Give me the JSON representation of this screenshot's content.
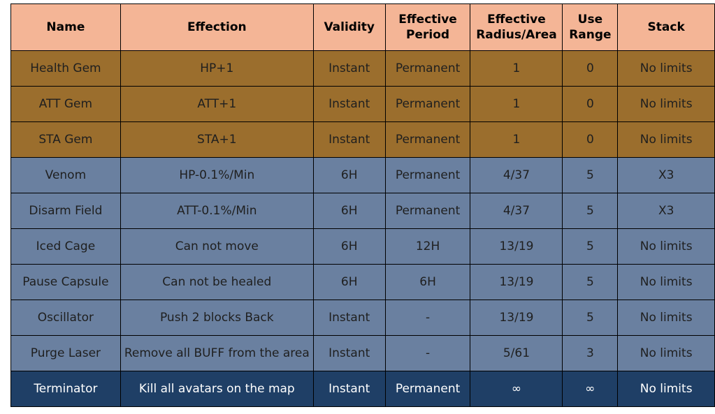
{
  "colors": {
    "header": "#f4b596",
    "gem": "#9b6e2d",
    "debuff": "#6a80a0",
    "ultimate": "#1f3f66"
  },
  "table": {
    "headers": [
      "Name",
      "Effection",
      "Validity",
      "Effective Period",
      "Effective Radius/Area",
      "Use Range",
      "Stack"
    ],
    "rows": [
      {
        "group": "gem",
        "cells": [
          "Health Gem",
          "HP+1",
          "Instant",
          "Permanent",
          "1",
          "0",
          "No limits"
        ]
      },
      {
        "group": "gem",
        "cells": [
          "ATT Gem",
          "ATT+1",
          "Instant",
          "Permanent",
          "1",
          "0",
          "No limits"
        ]
      },
      {
        "group": "gem",
        "cells": [
          "STA Gem",
          "STA+1",
          "Instant",
          "Permanent",
          "1",
          "0",
          "No limits"
        ]
      },
      {
        "group": "debuff",
        "cells": [
          "Venom",
          "HP-0.1%/Min",
          "6H",
          "Permanent",
          "4/37",
          "5",
          "X3"
        ]
      },
      {
        "group": "debuff",
        "cells": [
          "Disarm Field",
          "ATT-0.1%/Min",
          "6H",
          "Permanent",
          "4/37",
          "5",
          "X3"
        ]
      },
      {
        "group": "debuff",
        "cells": [
          "Iced Cage",
          "Can not move",
          "6H",
          "12H",
          "13/19",
          "5",
          "No limits"
        ]
      },
      {
        "group": "debuff",
        "cells": [
          "Pause Capsule",
          "Can not be healed",
          "6H",
          "6H",
          "13/19",
          "5",
          "No limits"
        ]
      },
      {
        "group": "debuff",
        "cells": [
          "Oscillator",
          "Push 2 blocks Back",
          "Instant",
          "-",
          "13/19",
          "5",
          "No limits"
        ]
      },
      {
        "group": "debuff",
        "cells": [
          "Purge Laser",
          "Remove all BUFF from the area",
          "Instant",
          "-",
          "5/61",
          "3",
          "No limits"
        ]
      },
      {
        "group": "ultimate",
        "cells": [
          "Terminator",
          "Kill all avatars on the map",
          "Instant",
          "Permanent",
          "∞",
          "∞",
          "No limits"
        ]
      }
    ]
  }
}
